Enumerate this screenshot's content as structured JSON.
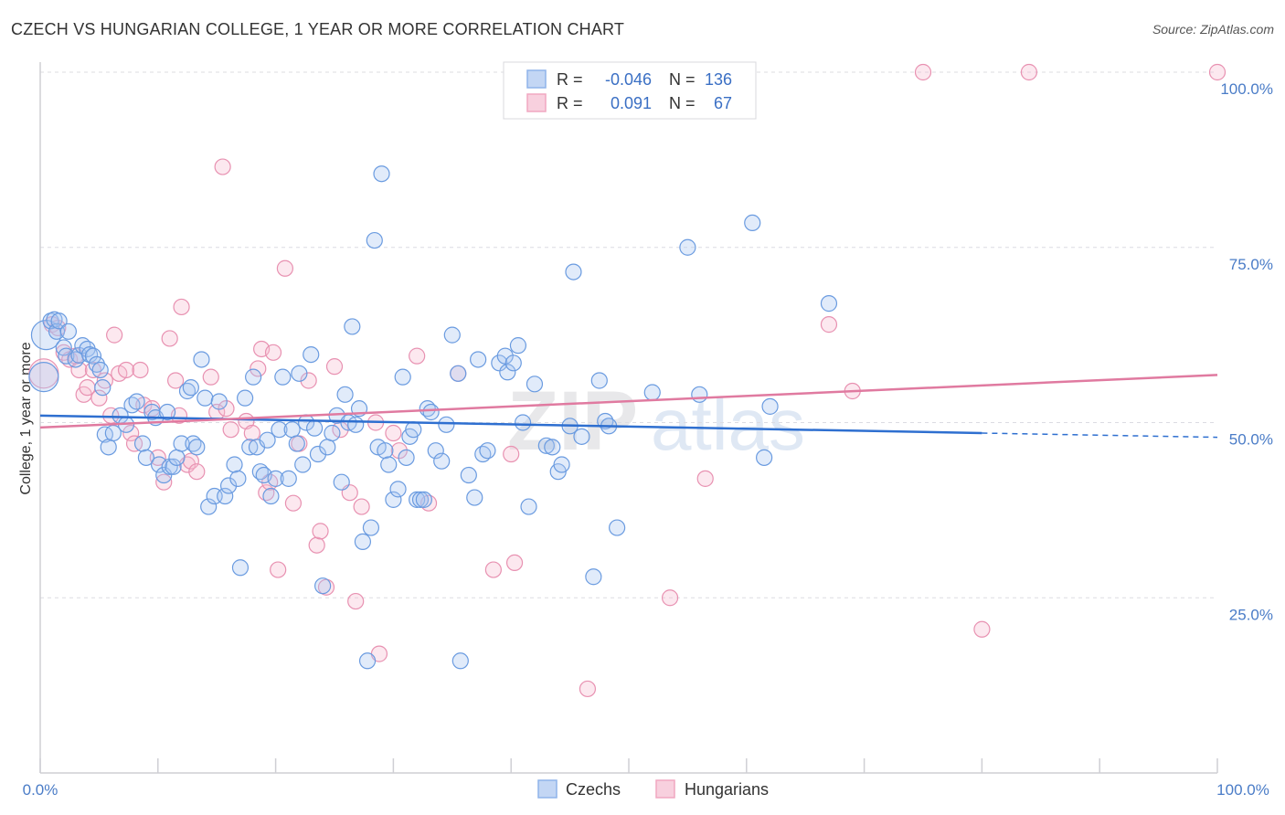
{
  "header": {
    "title": "CZECH VS HUNGARIAN COLLEGE, 1 YEAR OR MORE CORRELATION CHART",
    "source": "Source: ZipAtlas.com"
  },
  "watermark": {
    "zip": "ZIP",
    "atlas": "atlas"
  },
  "legend_box": {
    "rows": [
      {
        "r_label": "R =",
        "r_value": "-0.046",
        "n_label": "N =",
        "n_value": "136",
        "color": "#8fb4ea"
      },
      {
        "r_label": "R =",
        "r_value": "0.091",
        "n_label": "N =",
        "n_value": "67",
        "color": "#f1a7c1"
      }
    ]
  },
  "bottom_legend": [
    {
      "label": "Czechs",
      "color": "#8fb4ea"
    },
    {
      "label": "Hungarians",
      "color": "#f1a7c1"
    }
  ],
  "chart_data": {
    "type": "scatter",
    "title": "CZECH VS HUNGARIAN COLLEGE, 1 YEAR OR MORE CORRELATION CHART",
    "xlabel": "",
    "ylabel": "College, 1 year or more",
    "xlim": [
      0,
      100
    ],
    "ylim": [
      0,
      105
    ],
    "x_tick_labels": [
      "0.0%",
      "100.0%"
    ],
    "y_ticks": [
      25,
      50,
      75,
      100
    ],
    "y_tick_labels": [
      "25.0%",
      "50.0%",
      "75.0%",
      "100.0%"
    ],
    "grid": "horizontal dashed",
    "legend_placement": "bottom-center",
    "colors": {
      "czechs": "#4a86d8",
      "hungarians": "#e07aa0",
      "czech_line": "#2e6fd0",
      "hungarian_line": "#e07aa0"
    },
    "series": [
      {
        "name": "Czechs",
        "trend": {
          "x": [
            0,
            80
          ],
          "y": [
            51.0,
            48.5
          ],
          "dashed_to_x": 100,
          "dashed_to_y": 47.9
        },
        "points": [
          [
            0.3,
            56.5
          ],
          [
            0.5,
            62.5
          ],
          [
            0.9,
            64.5
          ],
          [
            1.2,
            64.7
          ],
          [
            1.4,
            63.0
          ],
          [
            1.6,
            64.5
          ],
          [
            2.0,
            60.7
          ],
          [
            2.2,
            59.5
          ],
          [
            2.4,
            63.0
          ],
          [
            3.0,
            59.0
          ],
          [
            3.3,
            59.6
          ],
          [
            3.6,
            61.0
          ],
          [
            4.0,
            60.5
          ],
          [
            4.2,
            59.7
          ],
          [
            4.5,
            59.5
          ],
          [
            4.8,
            58.3
          ],
          [
            5.1,
            57.5
          ],
          [
            5.3,
            55.0
          ],
          [
            5.5,
            48.3
          ],
          [
            5.8,
            46.5
          ],
          [
            6.2,
            48.5
          ],
          [
            6.8,
            51.0
          ],
          [
            7.3,
            49.7
          ],
          [
            7.8,
            52.5
          ],
          [
            8.2,
            53.0
          ],
          [
            8.7,
            47.0
          ],
          [
            9.0,
            45.0
          ],
          [
            9.5,
            51.5
          ],
          [
            9.8,
            50.7
          ],
          [
            10.1,
            44.0
          ],
          [
            10.5,
            42.5
          ],
          [
            10.8,
            51.5
          ],
          [
            11.0,
            43.7
          ],
          [
            11.3,
            43.7
          ],
          [
            11.6,
            45.0
          ],
          [
            12.0,
            47.0
          ],
          [
            12.5,
            54.5
          ],
          [
            12.8,
            55.0
          ],
          [
            13.0,
            47.0
          ],
          [
            13.3,
            46.5
          ],
          [
            13.7,
            59.0
          ],
          [
            14.0,
            53.5
          ],
          [
            14.3,
            38.0
          ],
          [
            14.8,
            39.5
          ],
          [
            15.2,
            53.0
          ],
          [
            15.7,
            39.5
          ],
          [
            16.0,
            41.0
          ],
          [
            16.5,
            44.0
          ],
          [
            16.8,
            42.0
          ],
          [
            17.0,
            29.3
          ],
          [
            17.4,
            53.5
          ],
          [
            17.8,
            46.5
          ],
          [
            18.1,
            56.5
          ],
          [
            18.4,
            46.5
          ],
          [
            18.7,
            43.0
          ],
          [
            19.0,
            42.5
          ],
          [
            19.3,
            47.5
          ],
          [
            19.6,
            39.5
          ],
          [
            20.0,
            42.0
          ],
          [
            20.3,
            49.0
          ],
          [
            20.6,
            56.5
          ],
          [
            21.1,
            42.0
          ],
          [
            21.4,
            49.0
          ],
          [
            21.8,
            47.0
          ],
          [
            22.0,
            57.0
          ],
          [
            22.3,
            44.0
          ],
          [
            22.6,
            50.0
          ],
          [
            23.0,
            59.7
          ],
          [
            23.3,
            49.2
          ],
          [
            23.6,
            45.5
          ],
          [
            24.0,
            26.7
          ],
          [
            24.4,
            46.5
          ],
          [
            24.8,
            48.5
          ],
          [
            25.2,
            51.0
          ],
          [
            25.6,
            41.5
          ],
          [
            25.9,
            54.0
          ],
          [
            26.2,
            50.0
          ],
          [
            26.5,
            63.7
          ],
          [
            26.8,
            49.7
          ],
          [
            27.1,
            52.0
          ],
          [
            27.4,
            33.0
          ],
          [
            27.8,
            16.0
          ],
          [
            28.1,
            35.0
          ],
          [
            28.4,
            76.0
          ],
          [
            28.7,
            46.5
          ],
          [
            29.0,
            85.5
          ],
          [
            29.3,
            46.0
          ],
          [
            29.6,
            44.0
          ],
          [
            30.0,
            39.0
          ],
          [
            30.4,
            40.5
          ],
          [
            30.8,
            56.5
          ],
          [
            31.1,
            45.0
          ],
          [
            31.4,
            48.0
          ],
          [
            31.7,
            49.0
          ],
          [
            32.0,
            39.0
          ],
          [
            32.3,
            39.0
          ],
          [
            32.6,
            39.0
          ],
          [
            32.9,
            52.0
          ],
          [
            33.2,
            51.5
          ],
          [
            33.6,
            46.0
          ],
          [
            34.1,
            44.5
          ],
          [
            34.5,
            49.7
          ],
          [
            35.0,
            62.5
          ],
          [
            35.5,
            57.0
          ],
          [
            35.7,
            16.0
          ],
          [
            36.4,
            42.5
          ],
          [
            36.9,
            39.3
          ],
          [
            37.2,
            59.0
          ],
          [
            37.6,
            45.5
          ],
          [
            38.0,
            46.0
          ],
          [
            39.0,
            58.5
          ],
          [
            39.5,
            59.5
          ],
          [
            39.7,
            57.2
          ],
          [
            40.2,
            58.5
          ],
          [
            40.6,
            61.0
          ],
          [
            41.0,
            50.0
          ],
          [
            41.5,
            38.0
          ],
          [
            42.0,
            55.5
          ],
          [
            43.0,
            46.7
          ],
          [
            43.5,
            46.5
          ],
          [
            44.0,
            43.0
          ],
          [
            44.3,
            44.0
          ],
          [
            45.0,
            49.5
          ],
          [
            45.3,
            71.5
          ],
          [
            46.0,
            48.0
          ],
          [
            47.0,
            28.0
          ],
          [
            47.5,
            56.0
          ],
          [
            48.0,
            50.2
          ],
          [
            48.3,
            49.5
          ],
          [
            49.0,
            35.0
          ],
          [
            52.0,
            54.3
          ],
          [
            55.0,
            75.0
          ],
          [
            56.0,
            54.0
          ],
          [
            60.5,
            78.5
          ],
          [
            61.5,
            45.0
          ],
          [
            62.0,
            52.3
          ],
          [
            67.0,
            67.0
          ]
        ]
      },
      {
        "name": "Hungarians",
        "trend": {
          "x": [
            0,
            100
          ],
          "y": [
            49.3,
            56.8
          ]
        },
        "points": [
          [
            0.3,
            57.0
          ],
          [
            1.0,
            64.0
          ],
          [
            1.5,
            63.5
          ],
          [
            2.0,
            60.0
          ],
          [
            2.5,
            59.0
          ],
          [
            3.0,
            59.5
          ],
          [
            3.3,
            57.5
          ],
          [
            3.7,
            54.0
          ],
          [
            4.0,
            55.0
          ],
          [
            4.5,
            57.5
          ],
          [
            5.0,
            53.5
          ],
          [
            5.5,
            56.0
          ],
          [
            6.0,
            51.0
          ],
          [
            6.3,
            62.5
          ],
          [
            6.7,
            57.0
          ],
          [
            7.3,
            57.5
          ],
          [
            7.7,
            48.5
          ],
          [
            8.0,
            47.0
          ],
          [
            8.5,
            57.5
          ],
          [
            8.8,
            52.5
          ],
          [
            9.5,
            52.0
          ],
          [
            10.0,
            45.0
          ],
          [
            10.5,
            41.5
          ],
          [
            11.0,
            62.0
          ],
          [
            11.5,
            56.0
          ],
          [
            11.8,
            51.0
          ],
          [
            12.0,
            66.5
          ],
          [
            12.5,
            44.0
          ],
          [
            12.8,
            44.5
          ],
          [
            13.3,
            43.0
          ],
          [
            14.5,
            56.5
          ],
          [
            15.0,
            51.5
          ],
          [
            15.5,
            86.5
          ],
          [
            15.8,
            52.0
          ],
          [
            16.2,
            49.0
          ],
          [
            17.5,
            50.2
          ],
          [
            18.0,
            48.5
          ],
          [
            18.5,
            57.7
          ],
          [
            18.8,
            60.5
          ],
          [
            19.2,
            40.0
          ],
          [
            19.5,
            41.5
          ],
          [
            19.8,
            60.0
          ],
          [
            20.2,
            29.0
          ],
          [
            20.8,
            72.0
          ],
          [
            21.5,
            38.5
          ],
          [
            22.0,
            47.0
          ],
          [
            22.8,
            56.0
          ],
          [
            23.5,
            32.5
          ],
          [
            23.8,
            34.5
          ],
          [
            24.3,
            26.5
          ],
          [
            25.0,
            58.0
          ],
          [
            25.5,
            49.0
          ],
          [
            26.3,
            40.0
          ],
          [
            26.8,
            24.5
          ],
          [
            27.3,
            38.0
          ],
          [
            28.5,
            50.0
          ],
          [
            28.8,
            17.0
          ],
          [
            30.0,
            48.5
          ],
          [
            30.5,
            46.0
          ],
          [
            32.0,
            59.5
          ],
          [
            33.0,
            38.5
          ],
          [
            35.5,
            57.0
          ],
          [
            38.5,
            29.0
          ],
          [
            40.0,
            45.5
          ],
          [
            40.3,
            30.0
          ],
          [
            46.5,
            12.0
          ],
          [
            53.5,
            25.0
          ],
          [
            56.5,
            42.0
          ],
          [
            67.0,
            64.0
          ],
          [
            69.0,
            54.5
          ],
          [
            75.0,
            100.0
          ],
          [
            80.0,
            20.5
          ],
          [
            84.0,
            100.0
          ],
          [
            100.0,
            100.0
          ]
        ]
      }
    ]
  }
}
